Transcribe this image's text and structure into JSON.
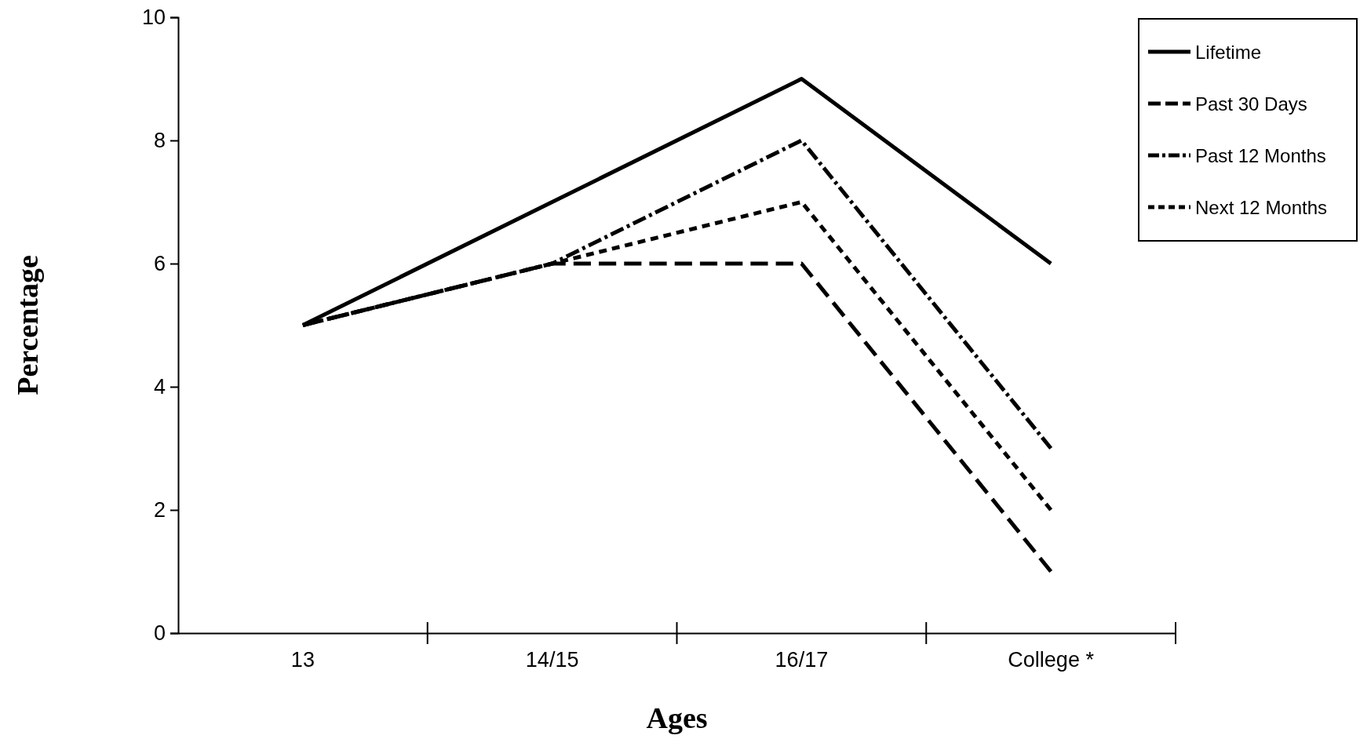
{
  "chart_data": {
    "type": "line",
    "xlabel": "Ages",
    "ylabel": "Percentage",
    "categories": [
      "13",
      "14/15",
      "16/17",
      "College *"
    ],
    "ylim": [
      0,
      10
    ],
    "yticks": [
      0,
      2,
      4,
      6,
      8,
      10
    ],
    "grid": false,
    "legend": "top right",
    "series": [
      {
        "name": "Lifetime",
        "color": "#000000",
        "line_style": "solid",
        "values": [
          5,
          7,
          9,
          6
        ]
      },
      {
        "name": "Past 30 Days",
        "color": "#000000",
        "line_style": "dashed",
        "values": [
          5,
          6,
          6,
          1
        ]
      },
      {
        "name": "Past 12 Months",
        "color": "#000000",
        "line_style": "dashdot",
        "values": [
          5,
          6,
          8,
          3
        ]
      },
      {
        "name": "Next 12 Months",
        "color": "#000000",
        "line_style": "dotted",
        "values": [
          5,
          6,
          7,
          2
        ]
      }
    ]
  }
}
